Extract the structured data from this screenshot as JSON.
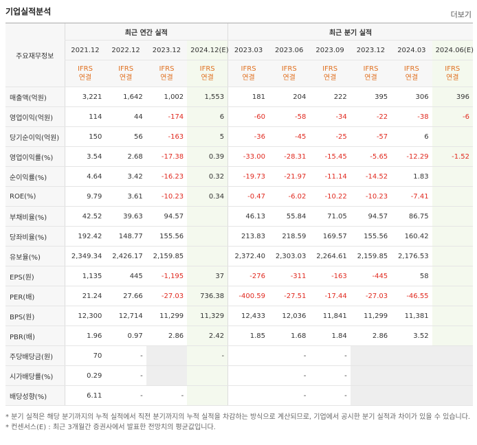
{
  "header": {
    "title": "기업실적분석",
    "more": "더보기"
  },
  "table": {
    "corner": "주요재무정보",
    "groups": [
      "최근 연간 실적",
      "최근 분기 실적"
    ],
    "periods": [
      "2021.12",
      "2022.12",
      "2023.12",
      "2024.12(E)",
      "2023.03",
      "2023.06",
      "2023.09",
      "2023.12",
      "2024.03",
      "2024.06(E)"
    ],
    "standards": [
      "IFRS\n연결",
      "IFRS\n연결",
      "IFRS\n연결",
      "IFRS\n연결",
      "IFRS\n연결",
      "IFRS\n연결",
      "IFRS\n연결",
      "IFRS\n연결",
      "IFRS\n연결",
      "IFRS\n연결"
    ],
    "rows": [
      {
        "label": "매출액(억원)",
        "values": [
          "3,221",
          "1,642",
          "1,002",
          "1,553",
          "181",
          "204",
          "222",
          "395",
          "306",
          "396"
        ]
      },
      {
        "label": "영업이익(억원)",
        "values": [
          "114",
          "44",
          "-174",
          "6",
          "-60",
          "-58",
          "-34",
          "-22",
          "-38",
          "-6"
        ]
      },
      {
        "label": "당기순이익(억원)",
        "values": [
          "150",
          "56",
          "-163",
          "5",
          "-36",
          "-45",
          "-25",
          "-57",
          "6",
          null
        ]
      },
      {
        "label": "영업이익률(%)",
        "values": [
          "3.54",
          "2.68",
          "-17.38",
          "0.39",
          "-33.00",
          "-28.31",
          "-15.45",
          "-5.65",
          "-12.29",
          "-1.52"
        ]
      },
      {
        "label": "순이익률(%)",
        "values": [
          "4.64",
          "3.42",
          "-16.23",
          "0.32",
          "-19.73",
          "-21.97",
          "-11.14",
          "-14.52",
          "1.83",
          null
        ]
      },
      {
        "label": "ROE(%)",
        "values": [
          "9.79",
          "3.61",
          "-10.23",
          "0.34",
          "-0.47",
          "-6.02",
          "-10.22",
          "-10.23",
          "-7.41",
          null
        ]
      },
      {
        "label": "부채비율(%)",
        "values": [
          "42.52",
          "39.63",
          "94.57",
          null,
          "46.13",
          "55.84",
          "71.05",
          "94.57",
          "86.75",
          null
        ]
      },
      {
        "label": "당좌비율(%)",
        "values": [
          "192.42",
          "148.77",
          "155.56",
          null,
          "213.83",
          "218.59",
          "169.57",
          "155.56",
          "160.42",
          null
        ]
      },
      {
        "label": "유보율(%)",
        "values": [
          "2,349.34",
          "2,426.17",
          "2,159.85",
          null,
          "2,372.40",
          "2,303.03",
          "2,264.61",
          "2,159.85",
          "2,176.53",
          null
        ]
      },
      {
        "label": "EPS(원)",
        "values": [
          "1,135",
          "445",
          "-1,195",
          "37",
          "-276",
          "-311",
          "-163",
          "-445",
          "58",
          null
        ]
      },
      {
        "label": "PER(배)",
        "values": [
          "21.24",
          "27.66",
          "-27.03",
          "736.38",
          "-400.59",
          "-27.51",
          "-17.44",
          "-27.03",
          "-46.55",
          null
        ]
      },
      {
        "label": "BPS(원)",
        "values": [
          "12,300",
          "12,714",
          "11,299",
          "11,329",
          "12,433",
          "12,036",
          "11,841",
          "11,299",
          "11,381",
          null
        ]
      },
      {
        "label": "PBR(배)",
        "values": [
          "1.96",
          "0.97",
          "2.86",
          "2.42",
          "1.85",
          "1.68",
          "1.84",
          "2.86",
          "3.52",
          null
        ]
      },
      {
        "label": "주당배당금(원)",
        "values": [
          "70",
          "-",
          null,
          "-",
          null,
          "-",
          "-",
          null,
          null,
          null
        ]
      },
      {
        "label": "시가배당률(%)",
        "values": [
          "0.29",
          "-",
          null,
          null,
          null,
          "-",
          "-",
          null,
          null,
          null
        ]
      },
      {
        "label": "배당성향(%)",
        "values": [
          "6.11",
          "-",
          "-",
          null,
          null,
          "-",
          "-",
          null,
          null,
          null
        ]
      }
    ]
  },
  "notes": [
    "* 분기 실적은 해당 분기까지의 누적 실적에서 직전 분기까지의 누적 실적을 차감하는 방식으로 계산되므로, 기업에서 공시한 분기 실적과 차이가 있을 수 있습니다.",
    "* 컨센서스(E) : 최근 3개월간 증권사에서 발표한 전망치의 평균값입니다."
  ]
}
